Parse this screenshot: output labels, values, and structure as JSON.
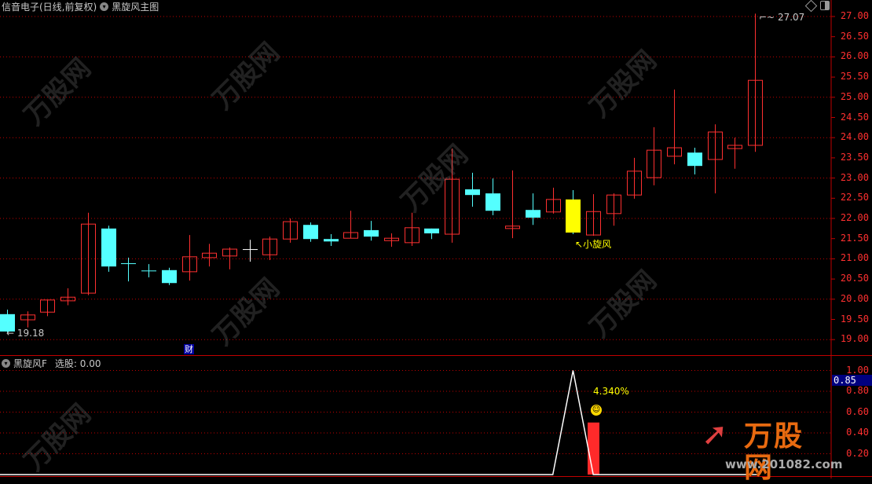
{
  "header": {
    "title": "信音电子(日线,前复权)",
    "indicator_main": "黑旋风主图",
    "sub_indicator": "黑旋风F",
    "sub_value_label": "选股: 0.00"
  },
  "annotations": {
    "low_label": "19.18",
    "high_label": "27.07",
    "signal_label": "小旋风",
    "finance_marker": "财",
    "percent_label": "4.340%",
    "sub_current_value": "0.85"
  },
  "logo": {
    "text": "万股网",
    "url_text": "www.201082.com"
  },
  "colors": {
    "up": "#ff3030",
    "down": "#54ffff",
    "doji": "#ffffff",
    "signal": "#ffff00",
    "grid": "#c00000",
    "background": "#000000"
  },
  "chart_data": [
    {
      "type": "candlestick",
      "title": "黑旋风主图",
      "ylim": [
        18.6,
        27.3
      ],
      "yticks": [
        "27.00",
        "26.50",
        "26.00",
        "25.50",
        "25.00",
        "24.50",
        "24.00",
        "23.50",
        "23.00",
        "22.50",
        "22.00",
        "21.50",
        "21.00",
        "20.50",
        "20.00",
        "19.50",
        "19.00"
      ],
      "grid": "dotted at integer prices",
      "highlight_index": 28,
      "ohlc": [
        [
          19.63,
          19.74,
          19.18,
          19.2
        ],
        [
          19.49,
          19.7,
          19.3,
          19.61
        ],
        [
          19.68,
          19.98,
          19.58,
          19.98
        ],
        [
          19.96,
          20.27,
          19.85,
          20.05
        ],
        [
          20.15,
          22.14,
          20.1,
          21.86
        ],
        [
          21.75,
          21.82,
          20.68,
          20.81
        ],
        [
          20.89,
          21.03,
          20.44,
          20.89
        ],
        [
          20.71,
          20.87,
          20.54,
          20.71
        ],
        [
          20.72,
          20.78,
          20.35,
          20.4
        ],
        [
          20.68,
          21.59,
          20.46,
          21.05
        ],
        [
          21.03,
          21.37,
          20.81,
          21.14
        ],
        [
          21.07,
          21.28,
          20.74,
          21.24
        ],
        [
          21.24,
          21.47,
          20.93,
          21.24
        ],
        [
          21.1,
          21.55,
          20.97,
          21.49
        ],
        [
          21.49,
          22.0,
          21.4,
          21.92
        ],
        [
          21.84,
          21.9,
          21.42,
          21.49
        ],
        [
          21.49,
          21.61,
          21.32,
          21.43
        ],
        [
          21.51,
          22.19,
          21.51,
          21.65
        ],
        [
          21.71,
          21.94,
          21.45,
          21.55
        ],
        [
          21.45,
          21.63,
          21.3,
          21.51
        ],
        [
          21.4,
          22.14,
          21.32,
          21.77
        ],
        [
          21.75,
          21.75,
          21.49,
          21.63
        ],
        [
          21.61,
          23.73,
          21.4,
          22.97
        ],
        [
          22.72,
          23.13,
          22.29,
          22.58
        ],
        [
          22.62,
          22.99,
          22.08,
          22.19
        ],
        [
          21.75,
          23.19,
          21.51,
          21.81
        ],
        [
          22.21,
          22.62,
          21.84,
          22.02
        ],
        [
          22.16,
          22.76,
          22.12,
          22.47
        ],
        [
          22.47,
          22.7,
          21.61,
          21.65
        ],
        [
          21.59,
          22.6,
          21.57,
          22.17
        ],
        [
          22.12,
          22.62,
          21.82,
          22.58
        ],
        [
          22.58,
          23.5,
          22.49,
          23.17
        ],
        [
          23.01,
          24.26,
          22.82,
          23.69
        ],
        [
          23.54,
          25.19,
          23.34,
          23.75
        ],
        [
          23.63,
          23.75,
          23.09,
          23.3
        ],
        [
          23.46,
          24.33,
          22.62,
          24.14
        ],
        [
          23.73,
          24.0,
          23.23,
          23.81
        ],
        [
          23.81,
          27.07,
          23.65,
          25.42
        ]
      ]
    },
    {
      "type": "line",
      "title": "黑旋风F",
      "ylim": [
        0,
        1.05
      ],
      "yticks": [
        "1.00",
        "0.80",
        "0.60",
        "0.40",
        "0.20"
      ],
      "line_values_by_index": {
        "27": 0,
        "28": 1.0,
        "29": 0
      },
      "bar": {
        "index": 29,
        "value": 0.5
      }
    }
  ]
}
